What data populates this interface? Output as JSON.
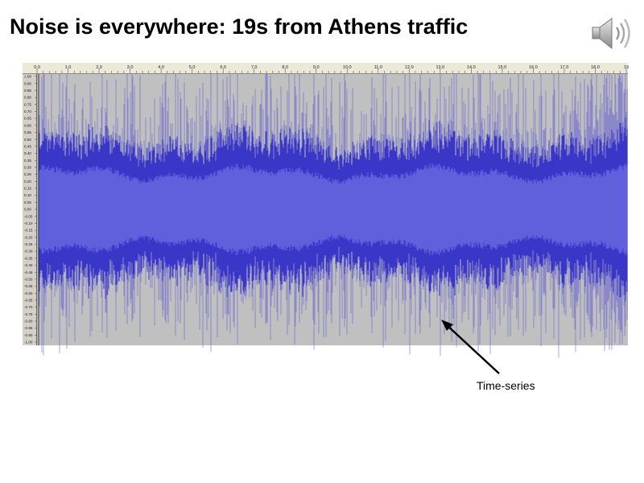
{
  "slide": {
    "title": "Noise is everywhere: 19s from Athens traffic",
    "annotation": "Time-series",
    "icons": {
      "audio": "speaker-icon"
    }
  },
  "editor": {
    "time_ruler": [
      "0.0",
      "1.0",
      "2.0",
      "3.0",
      "4.0",
      "5.0",
      "6.0",
      "7.0",
      "8.0",
      "9.0",
      "10.0",
      "11.0",
      "12.0",
      "13.0",
      "14.0",
      "15.0",
      "16.0",
      "17.0",
      "18.0",
      "19"
    ],
    "amplitude_ticks": [
      "1.00",
      "0.90",
      "0.85",
      "0.80",
      "0.75",
      "0.70",
      "0.65",
      "0.60",
      "0.55",
      "0.50",
      "0.45",
      "0.40",
      "0.35",
      "0.30",
      "0.25",
      "0.20",
      "0.15",
      "0.10",
      "0.05",
      "0.00",
      "-0.05",
      "-0.10",
      "-0.15",
      "-0.20",
      "-0.25",
      "-0.30",
      "-0.35",
      "-0.40",
      "-0.45",
      "-0.50",
      "-0.55",
      "-0.60",
      "-0.65",
      "-0.70",
      "-0.75",
      "-0.80",
      "-0.85",
      "-0.90",
      "-1.00"
    ],
    "colors": {
      "background": "#c0c0c0",
      "waveform_core": "#6060dd",
      "waveform_peak": "#3a36c8",
      "ruler": "#ece9d8"
    }
  }
}
